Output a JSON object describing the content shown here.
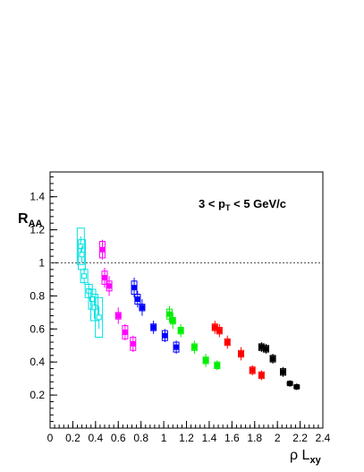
{
  "chart_data": {
    "type": "scatter",
    "title": "",
    "xlabel": {
      "main": "ρ L",
      "sub": "xy"
    },
    "ylabel": {
      "main": "R",
      "sub": "AA"
    },
    "annotation": {
      "prefix": "3 < p",
      "sub": "T",
      "suffix": " < 5 GeV/c"
    },
    "xlim": [
      0,
      2.4
    ],
    "ylim": [
      0,
      1.55
    ],
    "x_ticks": [
      "0",
      "0.2",
      "0.4",
      "0.6",
      "0.8",
      "1",
      "1.2",
      "1.4",
      "1.6",
      "1.8",
      "2",
      "2.2",
      "2.4"
    ],
    "y_ticks": [
      "0.2",
      "0.4",
      "0.6",
      "0.8",
      "1",
      "1.2",
      "1.4"
    ],
    "reference_line": {
      "y": 1.0,
      "style": "dotted"
    },
    "grid": false,
    "legend": "none",
    "series": [
      {
        "color": "#00e0e0",
        "marker": "open-square",
        "points": [
          {
            "x": 0.27,
            "y": 1.1,
            "err": 0.06,
            "sys": 0.11
          },
          {
            "x": 0.28,
            "y": 1.05,
            "err": 0.05,
            "sys": 0.09
          },
          {
            "x": 0.3,
            "y": 0.92,
            "err": 0.05,
            "sys": 0.04
          },
          {
            "x": 0.34,
            "y": 0.83,
            "err": 0.05,
            "sys": 0.04
          },
          {
            "x": 0.37,
            "y": 0.78,
            "err": 0.06,
            "sys": 0.06
          },
          {
            "x": 0.39,
            "y": 0.73,
            "err": 0.07,
            "sys": 0.08
          },
          {
            "x": 0.43,
            "y": 0.67,
            "err": 0.07,
            "sys": 0.12
          }
        ]
      },
      {
        "color": "#ff00ff",
        "marker": "filled-square",
        "points": [
          {
            "x": 0.46,
            "y": 1.08,
            "err": 0.06,
            "sys": 0.05
          },
          {
            "x": 0.48,
            "y": 0.91,
            "err": 0.06,
            "sys": 0.04
          },
          {
            "x": 0.52,
            "y": 0.86,
            "err": 0.06,
            "sys": 0.03
          },
          {
            "x": 0.6,
            "y": 0.68,
            "err": 0.05,
            "sys": 0.02
          },
          {
            "x": 0.66,
            "y": 0.58,
            "err": 0.05,
            "sys": 0.04
          },
          {
            "x": 0.73,
            "y": 0.51,
            "err": 0.05,
            "sys": 0.04
          }
        ]
      },
      {
        "color": "#0000ff",
        "marker": "filled-square",
        "points": [
          {
            "x": 0.74,
            "y": 0.85,
            "err": 0.06,
            "sys": 0.04
          },
          {
            "x": 0.77,
            "y": 0.78,
            "err": 0.05,
            "sys": 0.03
          },
          {
            "x": 0.81,
            "y": 0.73,
            "err": 0.05,
            "sys": 0.02
          },
          {
            "x": 0.91,
            "y": 0.61,
            "err": 0.04,
            "sys": 0.02
          },
          {
            "x": 1.01,
            "y": 0.56,
            "err": 0.04,
            "sys": 0.03
          },
          {
            "x": 1.11,
            "y": 0.49,
            "err": 0.04,
            "sys": 0.03
          }
        ]
      },
      {
        "color": "#00ee00",
        "marker": "filled-square",
        "points": [
          {
            "x": 1.05,
            "y": 0.69,
            "err": 0.05,
            "sys": 0.03
          },
          {
            "x": 1.08,
            "y": 0.65,
            "err": 0.05,
            "sys": 0.02
          },
          {
            "x": 1.15,
            "y": 0.59,
            "err": 0.04,
            "sys": 0.02
          },
          {
            "x": 1.27,
            "y": 0.49,
            "err": 0.04,
            "sys": 0.02
          },
          {
            "x": 1.37,
            "y": 0.41,
            "err": 0.04,
            "sys": 0.02
          },
          {
            "x": 1.47,
            "y": 0.38,
            "err": 0.03,
            "sys": 0.02
          }
        ]
      },
      {
        "color": "#ff0000",
        "marker": "filled-square",
        "points": [
          {
            "x": 1.45,
            "y": 0.61,
            "err": 0.04,
            "sys": 0.02
          },
          {
            "x": 1.49,
            "y": 0.59,
            "err": 0.04,
            "sys": 0.02
          },
          {
            "x": 1.56,
            "y": 0.52,
            "err": 0.04,
            "sys": 0.02
          },
          {
            "x": 1.68,
            "y": 0.45,
            "err": 0.04,
            "sys": 0.02
          },
          {
            "x": 1.78,
            "y": 0.35,
            "err": 0.03,
            "sys": 0.02
          },
          {
            "x": 1.86,
            "y": 0.32,
            "err": 0.03,
            "sys": 0.02
          }
        ]
      },
      {
        "color": "#000000",
        "marker": "filled-square",
        "points": [
          {
            "x": 1.86,
            "y": 0.49,
            "err": 0.03,
            "sys": 0.02
          },
          {
            "x": 1.9,
            "y": 0.48,
            "err": 0.03,
            "sys": 0.02
          },
          {
            "x": 1.96,
            "y": 0.42,
            "err": 0.03,
            "sys": 0.02
          },
          {
            "x": 2.05,
            "y": 0.34,
            "err": 0.03,
            "sys": 0.02
          },
          {
            "x": 2.11,
            "y": 0.27,
            "err": 0.02,
            "sys": 0.01
          },
          {
            "x": 2.17,
            "y": 0.25,
            "err": 0.02,
            "sys": 0.01
          }
        ]
      }
    ]
  }
}
